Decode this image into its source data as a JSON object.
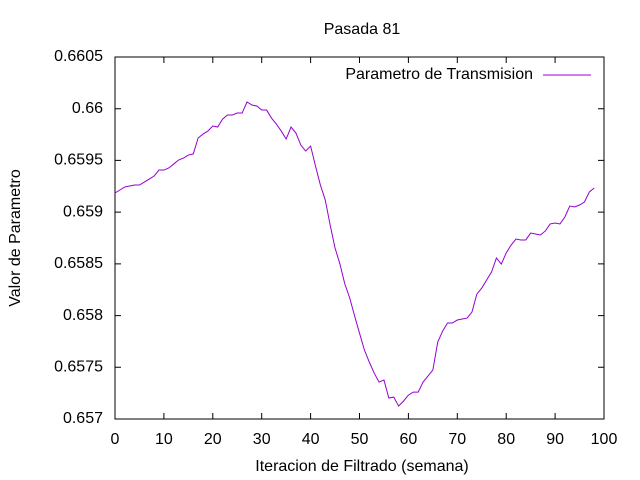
{
  "chart_data": {
    "type": "line",
    "title": "Pasada 81",
    "x_label": "Iteracion de Filtrado (semana)",
    "y_label": "Valor de Parametro",
    "x": [
      0,
      1,
      2,
      3,
      4,
      5,
      6,
      7,
      8,
      9,
      10,
      11,
      12,
      13,
      14,
      15,
      16,
      17,
      18,
      19,
      20,
      21,
      22,
      23,
      24,
      25,
      26,
      27,
      28,
      29,
      30,
      31,
      32,
      33,
      34,
      35,
      36,
      37,
      38,
      39,
      40,
      41,
      42,
      43,
      44,
      45,
      46,
      47,
      48,
      49,
      50,
      51,
      52,
      53,
      54,
      55,
      56,
      57,
      58,
      59,
      60,
      61,
      62,
      63,
      64,
      65,
      66,
      67,
      68,
      69,
      70,
      71,
      72,
      73,
      74,
      75,
      76,
      77,
      78,
      79,
      80,
      81,
      82,
      83,
      84,
      85,
      86,
      87,
      88,
      89,
      90,
      91,
      92,
      93,
      94,
      95,
      96,
      97,
      98
    ],
    "series": [
      {
        "name": "Parametro de Transmision",
        "color": "#9400d3",
        "values": [
          0.659185,
          0.659214,
          0.659243,
          0.659253,
          0.659262,
          0.659262,
          0.659291,
          0.65932,
          0.659349,
          0.659407,
          0.659407,
          0.659427,
          0.659465,
          0.659504,
          0.659523,
          0.659552,
          0.659562,
          0.659717,
          0.659755,
          0.659784,
          0.659833,
          0.659823,
          0.6599,
          0.659939,
          0.659939,
          0.659958,
          0.659958,
          0.660065,
          0.660036,
          0.660026,
          0.659987,
          0.659987,
          0.65991,
          0.659852,
          0.659784,
          0.659707,
          0.659823,
          0.659765,
          0.659649,
          0.659591,
          0.659639,
          0.659446,
          0.659262,
          0.659117,
          0.658875,
          0.658653,
          0.658498,
          0.658305,
          0.65817,
          0.657996,
          0.657831,
          0.657667,
          0.657551,
          0.657444,
          0.657357,
          0.657377,
          0.657203,
          0.657212,
          0.657125,
          0.657173,
          0.657231,
          0.65726,
          0.65726,
          0.657357,
          0.657415,
          0.657473,
          0.657744,
          0.65785,
          0.657928,
          0.657928,
          0.657957,
          0.657967,
          0.657976,
          0.658034,
          0.658208,
          0.658266,
          0.658344,
          0.658421,
          0.658556,
          0.658498,
          0.658605,
          0.658682,
          0.65874,
          0.658731,
          0.658731,
          0.658798,
          0.658789,
          0.658779,
          0.658818,
          0.658886,
          0.658895,
          0.658886,
          0.658953,
          0.659059,
          0.65905,
          0.659069,
          0.659098,
          0.659195,
          0.659233
        ]
      }
    ],
    "xlim": [
      0,
      100
    ],
    "xticks": [
      0,
      10,
      20,
      30,
      40,
      50,
      60,
      70,
      80,
      90,
      100
    ],
    "ylim": [
      0.657,
      0.6605
    ],
    "yticks": [
      0.657,
      0.6575,
      0.658,
      0.6585,
      0.659,
      0.6595,
      0.66,
      0.6605
    ],
    "legend": "top-right",
    "grid": false
  }
}
